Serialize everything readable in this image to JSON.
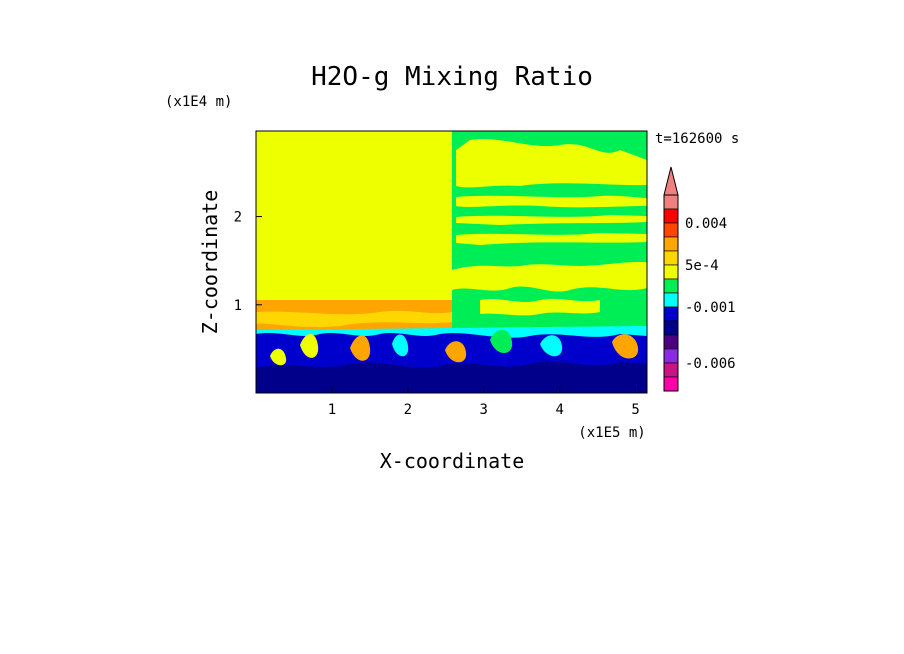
{
  "chart_data": {
    "type": "heatmap",
    "title": "H2O-g Mixing Ratio",
    "xlabel": "X-coordinate",
    "ylabel": "Z-coordinate",
    "x_unit": "(x1E5 m)",
    "z_unit": "(x1E4 m)",
    "time_label": "t=162600 s",
    "xlim": [
      0,
      5.15
    ],
    "zlim": [
      0,
      2.97
    ],
    "x_ticks": [
      1,
      2,
      3,
      4,
      5
    ],
    "z_ticks": [
      1,
      2
    ],
    "colorbar": {
      "extend": "max",
      "levels_top_to_bottom": [
        0.008,
        0.006,
        0.004,
        0.002,
        0.001,
        0.0005,
        0.0,
        -0.0005,
        -0.001,
        -0.0015,
        -0.002,
        -0.004,
        -0.006,
        -0.008,
        -0.01
      ],
      "colors_top_to_bottom": [
        "#f08080",
        "#ff0000",
        "#ff4500",
        "#ffa500",
        "#ffd700",
        "#eeff00",
        "#00ee55",
        "#00ffff",
        "#0000cd",
        "#00008b",
        "#4b0082",
        "#8a2be2",
        "#c71585",
        "#ff00aa"
      ],
      "tick_labels": [
        "0.004",
        "5e-4",
        "-0.001",
        "-0.006"
      ],
      "tick_values": [
        0.004,
        0.0005,
        -0.001,
        -0.006
      ]
    },
    "regions": [
      {
        "name": "background",
        "x": [
          0,
          5.15
        ],
        "z": [
          0,
          2.97
        ],
        "value": 0.0005
      },
      {
        "name": "right-upper-layer-green",
        "x": [
          2.6,
          5.15
        ],
        "z": [
          1.3,
          2.97
        ],
        "value": 0.0
      },
      {
        "name": "lower-left-orange-band",
        "x": [
          0,
          2.6
        ],
        "z": [
          0.65,
          1.0
        ],
        "value": 0.001
      },
      {
        "name": "boundary-layer-blue",
        "x": [
          0,
          5.15
        ],
        "z": [
          0,
          0.65
        ],
        "value": -0.001
      },
      {
        "name": "surface-navy",
        "x": [
          0,
          5.15
        ],
        "z": [
          0,
          0.2
        ],
        "value": -0.0015
      }
    ]
  }
}
